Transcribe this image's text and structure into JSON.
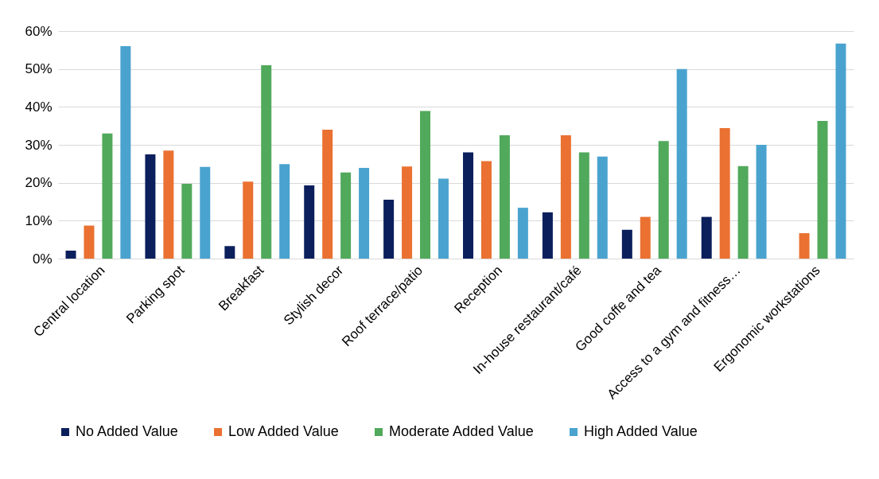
{
  "chart_data": {
    "type": "bar",
    "categories": [
      "Central location",
      "Parking spot",
      "Breakfast",
      "Stylish decor",
      "Roof terrace/patio",
      "Reception",
      "In-house restaurant/café",
      "Good coffe and tea",
      "Access to a gym and fitness…",
      "Ergonomic workstations"
    ],
    "series": [
      {
        "name": "No Added Value",
        "color": "#0b1f5c",
        "values": [
          2.1,
          27.5,
          3.3,
          19.3,
          15.5,
          28,
          12.2,
          7.6,
          11,
          null
        ]
      },
      {
        "name": "Low Added Value",
        "color": "#ea7131",
        "values": [
          8.7,
          28.5,
          20.3,
          34,
          24.3,
          25.7,
          32.5,
          11,
          34.4,
          6.7
        ]
      },
      {
        "name": "Moderate Added Value",
        "color": "#51a95b",
        "values": [
          33,
          19.7,
          51,
          22.7,
          38.9,
          32.5,
          28,
          31,
          24.4,
          36.3
        ]
      },
      {
        "name": "High Added Value",
        "color": "#4aa3cf",
        "values": [
          56,
          24.2,
          24.9,
          23.9,
          21.1,
          13.4,
          26.9,
          50,
          30,
          56.7
        ]
      }
    ],
    "ylim": [
      0,
      60
    ],
    "yticks": [
      {
        "value": 0,
        "label": "0%"
      },
      {
        "value": 10,
        "label": "10%"
      },
      {
        "value": 20,
        "label": "20%"
      },
      {
        "value": 30,
        "label": "30%"
      },
      {
        "value": 40,
        "label": "40%"
      },
      {
        "value": 50,
        "label": "50%"
      },
      {
        "value": 60,
        "label": "60%"
      }
    ],
    "grid": "y",
    "legend": "bottom"
  }
}
